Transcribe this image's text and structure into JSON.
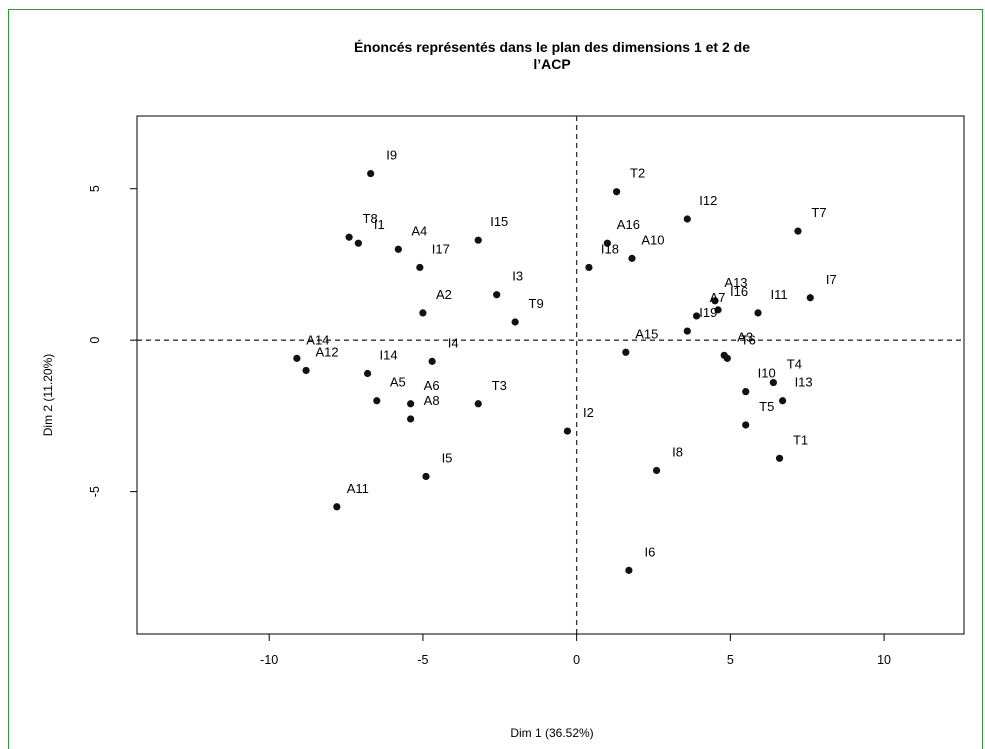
{
  "chart_data": {
    "type": "scatter",
    "title_lines": [
      "Énoncés représentés dans le plan des dimensions 1 et 2 de",
      "l’ACP"
    ],
    "xlabel": "Dim 1 (36.52%)",
    "ylabel": "Dim 2 (11.20%)",
    "xlim": [
      -14.3,
      12.6
    ],
    "ylim": [
      -9.7,
      7.4
    ],
    "xticks": [
      -10,
      -5,
      0,
      5,
      10
    ],
    "yticks": [
      -5,
      0,
      5
    ],
    "reference_lines": {
      "x": 0,
      "y": 0,
      "style": "dashed"
    },
    "points": [
      {
        "label": "I9",
        "x": -6.7,
        "y": 5.5
      },
      {
        "label": "T2",
        "x": 1.3,
        "y": 4.9
      },
      {
        "label": "I12",
        "x": 3.6,
        "y": 4.0
      },
      {
        "label": "T7",
        "x": 7.2,
        "y": 3.6
      },
      {
        "label": "T8",
        "x": -7.4,
        "y": 3.4
      },
      {
        "label": "I1",
        "x": -7.1,
        "y": 3.2
      },
      {
        "label": "A4",
        "x": -5.8,
        "y": 3.0
      },
      {
        "label": "I17",
        "x": -5.1,
        "y": 2.4
      },
      {
        "label": "I15",
        "x": -3.2,
        "y": 3.3
      },
      {
        "label": "A16",
        "x": 1.0,
        "y": 3.2
      },
      {
        "label": "A10",
        "x": 1.8,
        "y": 2.7
      },
      {
        "label": "I18",
        "x": 0.4,
        "y": 2.4
      },
      {
        "label": "I3",
        "x": -2.6,
        "y": 1.5
      },
      {
        "label": "T9",
        "x": -2.0,
        "y": 0.6
      },
      {
        "label": "A2",
        "x": -5.0,
        "y": 0.9
      },
      {
        "label": "A13",
        "x": 4.5,
        "y": 1.3
      },
      {
        "label": "I7",
        "x": 7.6,
        "y": 1.4
      },
      {
        "label": "A7",
        "x": 3.9,
        "y": 0.8
      },
      {
        "label": "I16",
        "x": 4.6,
        "y": 1.0
      },
      {
        "label": "I11",
        "x": 5.9,
        "y": 0.9
      },
      {
        "label": "I19",
        "x": 3.6,
        "y": 0.3
      },
      {
        "label": "A15",
        "x": 1.6,
        "y": -0.4
      },
      {
        "label": "A3",
        "x": 4.8,
        "y": -0.5
      },
      {
        "label": "T6",
        "x": 4.9,
        "y": -0.6
      },
      {
        "label": "A14",
        "x": -9.1,
        "y": -0.6
      },
      {
        "label": "A12",
        "x": -8.8,
        "y": -1.0
      },
      {
        "label": "I14",
        "x": -6.8,
        "y": -1.1
      },
      {
        "label": "I4",
        "x": -4.7,
        "y": -0.7
      },
      {
        "label": "A5",
        "x": -6.5,
        "y": -2.0
      },
      {
        "label": "A6",
        "x": -5.4,
        "y": -2.1
      },
      {
        "label": "A8",
        "x": -5.4,
        "y": -2.6
      },
      {
        "label": "T3",
        "x": -3.2,
        "y": -2.1
      },
      {
        "label": "I2",
        "x": -0.3,
        "y": -3.0
      },
      {
        "label": "I10",
        "x": 5.5,
        "y": -1.7
      },
      {
        "label": "T4",
        "x": 6.4,
        "y": -1.4
      },
      {
        "label": "I13",
        "x": 6.7,
        "y": -2.0
      },
      {
        "label": "T5",
        "x": 5.5,
        "y": -2.8
      },
      {
        "label": "T1",
        "x": 6.6,
        "y": -3.9
      },
      {
        "label": "I8",
        "x": 2.6,
        "y": -4.3
      },
      {
        "label": "I5",
        "x": -4.9,
        "y": -4.5
      },
      {
        "label": "A11",
        "x": -7.8,
        "y": -5.5
      },
      {
        "label": "I6",
        "x": 1.7,
        "y": -7.6
      }
    ]
  }
}
